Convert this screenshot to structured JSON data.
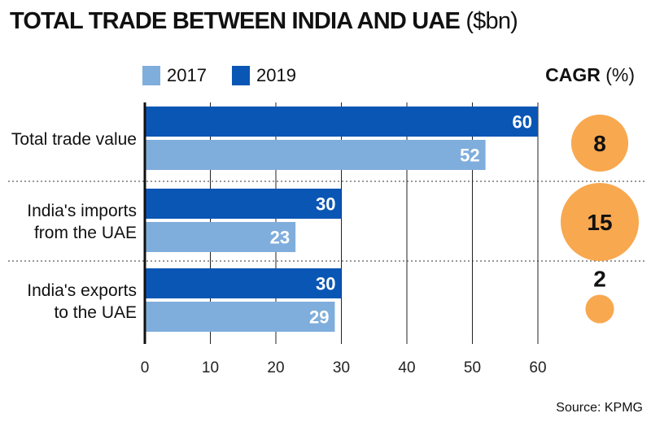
{
  "title": {
    "main": "TOTAL TRADE BETWEEN INDIA AND UAE",
    "unit": "($bn)"
  },
  "legend": [
    {
      "label": "2017",
      "color": "#7faedc"
    },
    {
      "label": "2019",
      "color": "#0a56b5"
    }
  ],
  "cagr_header": {
    "bold": "CAGR",
    "unit": "(%)"
  },
  "source": "Source: KPMG",
  "chart_data": {
    "type": "bar",
    "orientation": "horizontal",
    "title": "TOTAL TRADE BETWEEN INDIA AND UAE ($bn)",
    "categories": [
      "Total trade value",
      "India's imports from the UAE",
      "India's exports to the UAE"
    ],
    "category_lines": [
      [
        "Total trade value"
      ],
      [
        "India's imports",
        "from the UAE"
      ],
      [
        "India's exports",
        "to the UAE"
      ]
    ],
    "series": [
      {
        "name": "2019",
        "values": [
          60,
          30,
          30
        ],
        "color": "#0a56b5"
      },
      {
        "name": "2017",
        "values": [
          52,
          23,
          29
        ],
        "color": "#7faedc"
      }
    ],
    "xlim": [
      0,
      60
    ],
    "xticks": [
      0,
      10,
      20,
      30,
      40,
      50,
      60
    ],
    "grid": true,
    "cagr": {
      "label": "CAGR (%)",
      "values": [
        8,
        15,
        2
      ],
      "color": "#f8a84f"
    }
  }
}
